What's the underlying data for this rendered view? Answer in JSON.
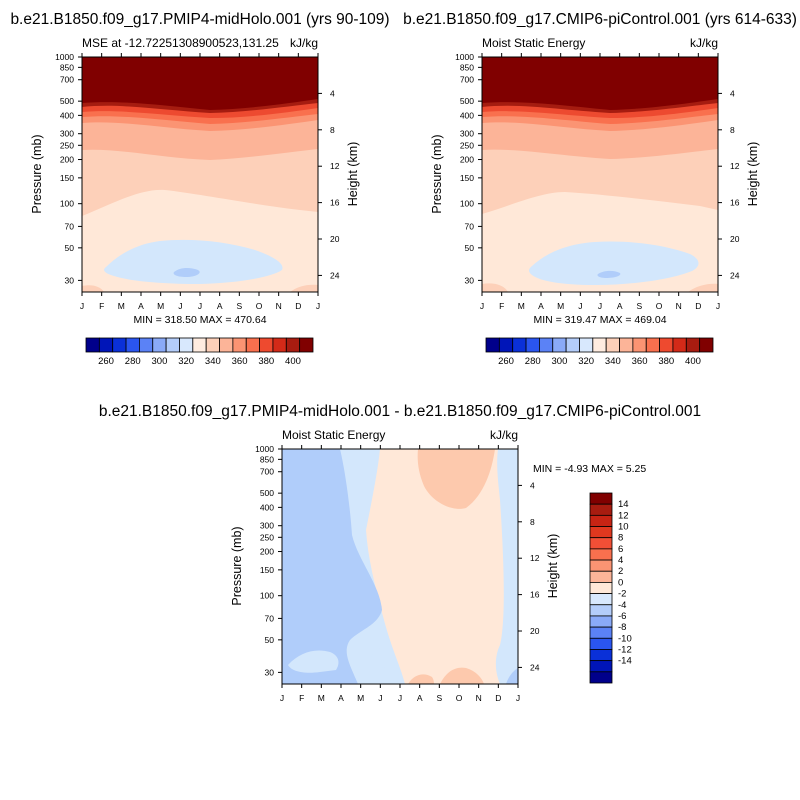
{
  "chart_data": [
    {
      "type": "contour",
      "title": "b.e21.B1850.f09_g17.PMIP4-midHolo.001 (yrs 90-109)",
      "subtitle_left": "MSE at -12.72251308900523,131.25",
      "subtitle_right": "kJ/kg",
      "ylabel": "Pressure (mb)",
      "ylabel_right": "Height (km)",
      "minmax": "MIN = 318.50 MAX = 470.64",
      "colorbar_labels": [
        "260",
        "280",
        "300",
        "320",
        "340",
        "360",
        "380",
        "400"
      ]
    },
    {
      "type": "contour",
      "title": "b.e21.B1850.f09_g17.CMIP6-piControl.001 (yrs 614-633)",
      "subtitle_left": "Moist Static Energy",
      "subtitle_right": "kJ/kg",
      "ylabel": "Pressure (mb)",
      "ylabel_right": "Height (km)",
      "minmax": "MIN = 319.47 MAX = 469.04",
      "colorbar_labels": [
        "260",
        "280",
        "300",
        "320",
        "340",
        "360",
        "380",
        "400"
      ]
    },
    {
      "type": "contour",
      "title": "b.e21.B1850.f09_g17.PMIP4-midHolo.001 - b.e21.B1850.f09_g17.CMIP6-piControl.001",
      "subtitle_left": "Moist Static Energy",
      "subtitle_right": "kJ/kg",
      "ylabel": "Pressure (mb)",
      "ylabel_right": "Height (km)",
      "minmax": "MIN =  -4.93 MAX =   5.25",
      "colorbar_labels": [
        "14",
        "12",
        "10",
        "8",
        "6",
        "4",
        "2",
        "0",
        "-2",
        "-4",
        "-6",
        "-8",
        "-10",
        "-12",
        "-14"
      ]
    }
  ],
  "axes": {
    "months": [
      "J",
      "F",
      "M",
      "A",
      "M",
      "J",
      "J",
      "A",
      "S",
      "O",
      "N",
      "D",
      "J"
    ],
    "pressure_ticks": [
      "30",
      "50",
      "70",
      "100",
      "150",
      "200",
      "250",
      "300",
      "400",
      "500",
      "700",
      "850",
      "1000"
    ],
    "pressure_values": [
      30,
      50,
      70,
      100,
      150,
      200,
      250,
      300,
      400,
      500,
      700,
      850,
      1000
    ],
    "height_ticks": [
      "4",
      "8",
      "12",
      "16",
      "20",
      "24"
    ],
    "height_values": [
      4,
      8,
      12,
      16,
      20,
      24
    ]
  },
  "colors": {
    "mse_bands": [
      "#ffe8d8",
      "#fdd0b9",
      "#fcb498",
      "#fb9473",
      "#f9704e",
      "#ed4a30",
      "#d32a18",
      "#a51c10",
      "#800000"
    ],
    "blue_band": "#d3e7fc",
    "diff_blue1": "#d3e7fc",
    "diff_blue2": "#b0cdfa",
    "diff_red1": "#ffe8d8",
    "diff_red2": "#fdc9ad",
    "horiz_bar": [
      "#00008b",
      "#0015b8",
      "#0a30d8",
      "#2a55f0",
      "#5b82f6",
      "#8aaaf8",
      "#b4cdfa",
      "#d8e8fd",
      "#ffece0",
      "#fdd0b9",
      "#fcb498",
      "#fb9473",
      "#f9704e",
      "#ee4a2f",
      "#d32a18",
      "#a81c10",
      "#800000"
    ],
    "vert_bar": [
      "#800000",
      "#a81c10",
      "#c82414",
      "#e0381f",
      "#f24f36",
      "#f9704e",
      "#fb9473",
      "#fcb498",
      "#ffe8d8",
      "#d8e8fd",
      "#b4cdfa",
      "#8aaaf8",
      "#5b82f6",
      "#2a55f0",
      "#0a30d8",
      "#0015b8",
      "#00008b"
    ]
  }
}
